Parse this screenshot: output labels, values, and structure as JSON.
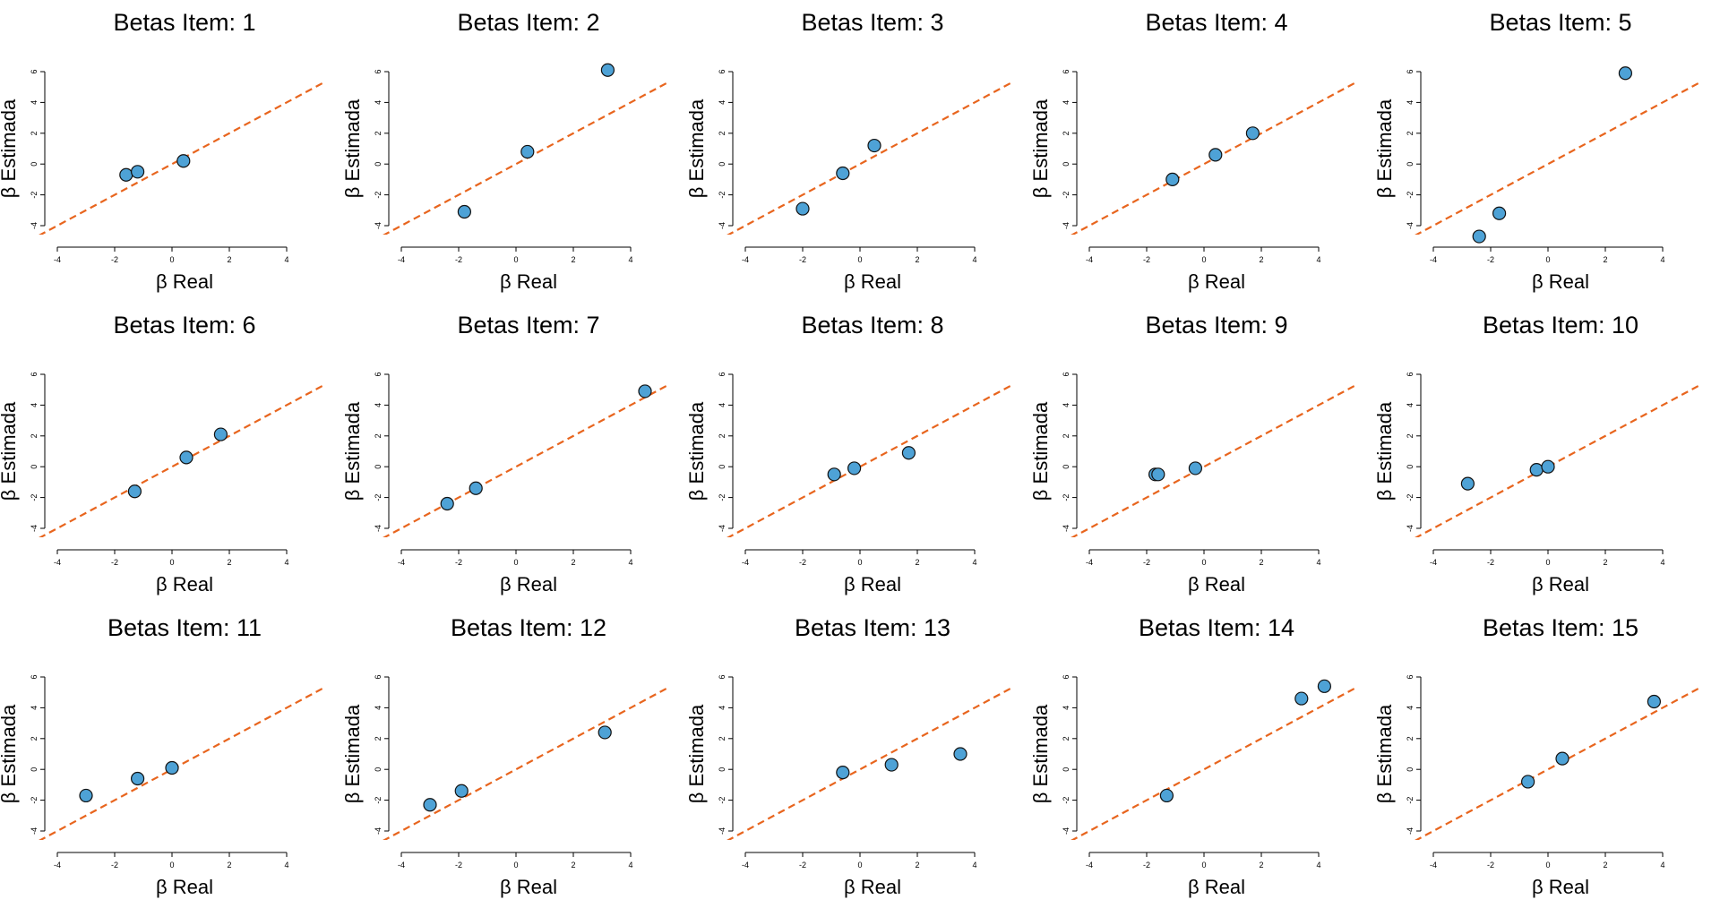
{
  "colors": {
    "point_fill": "#4ea2d6",
    "point_stroke": "#111111",
    "ref_line": "#e8651e",
    "axis": "#000000"
  },
  "chart_data": [
    {
      "type": "scatter",
      "title": "Betas Item: 1",
      "xlabel": "β Real",
      "ylabel": "β Estimada",
      "xlim": [
        -4,
        4
      ],
      "ylim": [
        -4,
        6
      ],
      "xticks": [
        -4,
        -2,
        0,
        2,
        4
      ],
      "yticks": [
        -4,
        -2,
        0,
        2,
        4,
        6
      ],
      "reference_line": "y = x (dashed)",
      "points": [
        {
          "x": -1.6,
          "y": -0.7
        },
        {
          "x": -1.2,
          "y": -0.5
        },
        {
          "x": 0.4,
          "y": 0.2
        }
      ]
    },
    {
      "type": "scatter",
      "title": "Betas Item: 2",
      "xlabel": "β Real",
      "ylabel": "β Estimada",
      "xlim": [
        -4,
        4
      ],
      "ylim": [
        -4,
        6
      ],
      "xticks": [
        -4,
        -2,
        0,
        2,
        4
      ],
      "yticks": [
        -4,
        -2,
        0,
        2,
        4,
        6
      ],
      "reference_line": "y = x (dashed)",
      "points": [
        {
          "x": -1.8,
          "y": -3.1
        },
        {
          "x": 0.4,
          "y": 0.8
        },
        {
          "x": 3.2,
          "y": 6.1
        }
      ]
    },
    {
      "type": "scatter",
      "title": "Betas Item: 3",
      "xlabel": "β Real",
      "ylabel": "β Estimada",
      "xlim": [
        -4,
        4
      ],
      "ylim": [
        -4,
        6
      ],
      "xticks": [
        -4,
        -2,
        0,
        2,
        4
      ],
      "yticks": [
        -4,
        -2,
        0,
        2,
        4,
        6
      ],
      "reference_line": "y = x (dashed)",
      "points": [
        {
          "x": -2.0,
          "y": -2.9
        },
        {
          "x": -0.6,
          "y": -0.6
        },
        {
          "x": 0.5,
          "y": 1.2
        }
      ]
    },
    {
      "type": "scatter",
      "title": "Betas Item: 4",
      "xlabel": "β Real",
      "ylabel": "β Estimada",
      "xlim": [
        -4,
        4
      ],
      "ylim": [
        -4,
        6
      ],
      "xticks": [
        -4,
        -2,
        0,
        2,
        4
      ],
      "yticks": [
        -4,
        -2,
        0,
        2,
        4,
        6
      ],
      "reference_line": "y = x (dashed)",
      "points": [
        {
          "x": -1.1,
          "y": -1.0
        },
        {
          "x": 0.4,
          "y": 0.6
        },
        {
          "x": 1.7,
          "y": 2.0
        }
      ]
    },
    {
      "type": "scatter",
      "title": "Betas Item: 5",
      "xlabel": "β Real",
      "ylabel": "β Estimada",
      "xlim": [
        -4,
        4
      ],
      "ylim": [
        -4,
        6
      ],
      "xticks": [
        -4,
        -2,
        0,
        2,
        4
      ],
      "yticks": [
        -4,
        -2,
        0,
        2,
        4,
        6
      ],
      "reference_line": "y = x (dashed)",
      "points": [
        {
          "x": -2.4,
          "y": -4.7
        },
        {
          "x": -1.7,
          "y": -3.2
        },
        {
          "x": 2.7,
          "y": 5.9
        }
      ]
    },
    {
      "type": "scatter",
      "title": "Betas Item: 6",
      "xlabel": "β Real",
      "ylabel": "β Estimada",
      "xlim": [
        -4,
        4
      ],
      "ylim": [
        -4,
        6
      ],
      "xticks": [
        -4,
        -2,
        0,
        2,
        4
      ],
      "yticks": [
        -4,
        -2,
        0,
        2,
        4,
        6
      ],
      "reference_line": "y = x (dashed)",
      "points": [
        {
          "x": -1.3,
          "y": -1.6
        },
        {
          "x": 0.5,
          "y": 0.6
        },
        {
          "x": 1.7,
          "y": 2.1
        }
      ]
    },
    {
      "type": "scatter",
      "title": "Betas Item: 7",
      "xlabel": "β Real",
      "ylabel": "β Estimada",
      "xlim": [
        -4,
        4
      ],
      "ylim": [
        -4,
        6
      ],
      "xticks": [
        -4,
        -2,
        0,
        2,
        4
      ],
      "yticks": [
        -4,
        -2,
        0,
        2,
        4,
        6
      ],
      "reference_line": "y = x (dashed)",
      "points": [
        {
          "x": -2.4,
          "y": -2.4
        },
        {
          "x": -1.4,
          "y": -1.4
        },
        {
          "x": 4.5,
          "y": 4.9
        }
      ]
    },
    {
      "type": "scatter",
      "title": "Betas Item: 8",
      "xlabel": "β Real",
      "ylabel": "β Estimada",
      "xlim": [
        -4,
        4
      ],
      "ylim": [
        -4,
        6
      ],
      "xticks": [
        -4,
        -2,
        0,
        2,
        4
      ],
      "yticks": [
        -4,
        -2,
        0,
        2,
        4,
        6
      ],
      "reference_line": "y = x (dashed)",
      "points": [
        {
          "x": -0.9,
          "y": -0.5
        },
        {
          "x": -0.2,
          "y": -0.1
        },
        {
          "x": 1.7,
          "y": 0.9
        }
      ]
    },
    {
      "type": "scatter",
      "title": "Betas Item: 9",
      "xlabel": "β Real",
      "ylabel": "β Estimada",
      "xlim": [
        -4,
        4
      ],
      "ylim": [
        -4,
        6
      ],
      "xticks": [
        -4,
        -2,
        0,
        2,
        4
      ],
      "yticks": [
        -4,
        -2,
        0,
        2,
        4,
        6
      ],
      "reference_line": "y = x (dashed)",
      "points": [
        {
          "x": -1.7,
          "y": -0.5
        },
        {
          "x": -1.6,
          "y": -0.5
        },
        {
          "x": -0.3,
          "y": -0.1
        }
      ]
    },
    {
      "type": "scatter",
      "title": "Betas Item: 10",
      "xlabel": "β Real",
      "ylabel": "β Estimada",
      "xlim": [
        -4,
        4
      ],
      "ylim": [
        -4,
        6
      ],
      "xticks": [
        -4,
        -2,
        0,
        2,
        4
      ],
      "yticks": [
        -4,
        -2,
        0,
        2,
        4,
        6
      ],
      "reference_line": "y = x (dashed)",
      "points": [
        {
          "x": -2.8,
          "y": -1.1
        },
        {
          "x": -0.4,
          "y": -0.2
        },
        {
          "x": 0.0,
          "y": 0.0
        }
      ]
    },
    {
      "type": "scatter",
      "title": "Betas Item: 11",
      "xlabel": "β Real",
      "ylabel": "β Estimada",
      "xlim": [
        -4,
        4
      ],
      "ylim": [
        -4,
        6
      ],
      "xticks": [
        -4,
        -2,
        0,
        2,
        4
      ],
      "yticks": [
        -4,
        -2,
        0,
        2,
        4,
        6
      ],
      "reference_line": "y = x (dashed)",
      "points": [
        {
          "x": -3.0,
          "y": -1.7
        },
        {
          "x": -1.2,
          "y": -0.6
        },
        {
          "x": 0.0,
          "y": 0.1
        }
      ]
    },
    {
      "type": "scatter",
      "title": "Betas Item: 12",
      "xlabel": "β Real",
      "ylabel": "β Estimada",
      "xlim": [
        -4,
        4
      ],
      "ylim": [
        -4,
        6
      ],
      "xticks": [
        -4,
        -2,
        0,
        2,
        4
      ],
      "yticks": [
        -4,
        -2,
        0,
        2,
        4,
        6
      ],
      "reference_line": "y = x (dashed)",
      "points": [
        {
          "x": -3.0,
          "y": -2.3
        },
        {
          "x": -1.9,
          "y": -1.4
        },
        {
          "x": 3.1,
          "y": 2.4
        }
      ]
    },
    {
      "type": "scatter",
      "title": "Betas Item: 13",
      "xlabel": "β Real",
      "ylabel": "β Estimada",
      "xlim": [
        -4,
        4
      ],
      "ylim": [
        -4,
        6
      ],
      "xticks": [
        -4,
        -2,
        0,
        2,
        4
      ],
      "yticks": [
        -4,
        -2,
        0,
        2,
        4,
        6
      ],
      "reference_line": "y = x (dashed)",
      "points": [
        {
          "x": -0.6,
          "y": -0.2
        },
        {
          "x": 1.1,
          "y": 0.3
        },
        {
          "x": 3.5,
          "y": 1.0
        }
      ]
    },
    {
      "type": "scatter",
      "title": "Betas Item: 14",
      "xlabel": "β Real",
      "ylabel": "β Estimada",
      "xlim": [
        -4,
        4
      ],
      "ylim": [
        -4,
        6
      ],
      "xticks": [
        -4,
        -2,
        0,
        2,
        4
      ],
      "yticks": [
        -4,
        -2,
        0,
        2,
        4,
        6
      ],
      "reference_line": "y = x (dashed)",
      "points": [
        {
          "x": -1.3,
          "y": -1.7
        },
        {
          "x": 3.4,
          "y": 4.6
        },
        {
          "x": 4.2,
          "y": 5.4
        }
      ]
    },
    {
      "type": "scatter",
      "title": "Betas Item: 15",
      "xlabel": "β Real",
      "ylabel": "β Estimada",
      "xlim": [
        -4,
        4
      ],
      "ylim": [
        -4,
        6
      ],
      "xticks": [
        -4,
        -2,
        0,
        2,
        4
      ],
      "yticks": [
        -4,
        -2,
        0,
        2,
        4,
        6
      ],
      "reference_line": "y = x (dashed)",
      "points": [
        {
          "x": -0.7,
          "y": -0.8
        },
        {
          "x": 0.5,
          "y": 0.7
        },
        {
          "x": 3.7,
          "y": 4.4
        }
      ]
    }
  ]
}
